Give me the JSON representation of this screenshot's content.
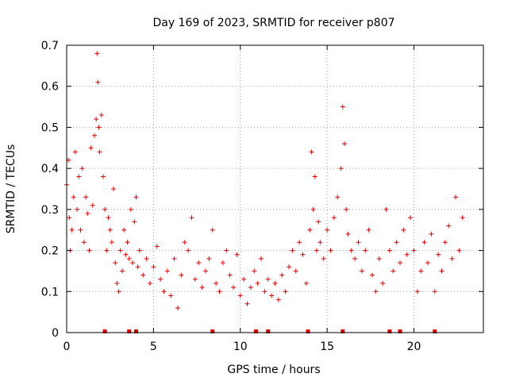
{
  "chart_data": {
    "type": "scatter",
    "title": "Day 169 of 2023, SRMTID for receiver p807",
    "xlabel": "GPS time / hours",
    "ylabel": "SRMTID / TECUs",
    "xlim": [
      0,
      24
    ],
    "ylim": [
      0,
      0.7
    ],
    "xticks": [
      0,
      5,
      10,
      15,
      20
    ],
    "xtick_labels": [
      "0",
      "5",
      "10",
      "15",
      "20"
    ],
    "yticks": [
      0,
      0.1,
      0.2,
      0.3,
      0.4,
      0.5,
      0.6,
      0.7
    ],
    "ytick_labels": [
      "0",
      "0.1",
      "0.2",
      "0.3",
      "0.4",
      "0.5",
      "0.6",
      "0.7"
    ],
    "grid": true,
    "marker": "+",
    "color": "#e00000",
    "series": [
      {
        "name": "SRMTID",
        "points": [
          [
            0.0,
            0.36
          ],
          [
            0.1,
            0.42
          ],
          [
            0.15,
            0.28
          ],
          [
            0.2,
            0.2
          ],
          [
            0.3,
            0.25
          ],
          [
            0.4,
            0.33
          ],
          [
            0.5,
            0.44
          ],
          [
            0.6,
            0.3
          ],
          [
            0.7,
            0.38
          ],
          [
            0.8,
            0.25
          ],
          [
            0.9,
            0.4
          ],
          [
            1.0,
            0.22
          ],
          [
            1.1,
            0.33
          ],
          [
            1.2,
            0.29
          ],
          [
            1.3,
            0.2
          ],
          [
            1.4,
            0.45
          ],
          [
            1.5,
            0.31
          ],
          [
            1.6,
            0.48
          ],
          [
            1.7,
            0.52
          ],
          [
            1.75,
            0.68
          ],
          [
            1.8,
            0.61
          ],
          [
            1.85,
            0.5
          ],
          [
            1.9,
            0.44
          ],
          [
            2.0,
            0.53
          ],
          [
            2.1,
            0.38
          ],
          [
            2.2,
            0.3
          ],
          [
            2.3,
            0.2
          ],
          [
            2.4,
            0.28
          ],
          [
            2.5,
            0.25
          ],
          [
            2.6,
            0.22
          ],
          [
            2.7,
            0.35
          ],
          [
            2.8,
            0.17
          ],
          [
            2.9,
            0.12
          ],
          [
            3.0,
            0.1
          ],
          [
            3.1,
            0.2
          ],
          [
            3.2,
            0.15
          ],
          [
            3.3,
            0.25
          ],
          [
            3.4,
            0.19
          ],
          [
            3.5,
            0.22
          ],
          [
            3.6,
            0.18
          ],
          [
            3.7,
            0.3
          ],
          [
            3.8,
            0.17
          ],
          [
            3.9,
            0.27
          ],
          [
            4.0,
            0.33
          ],
          [
            4.1,
            0.16
          ],
          [
            4.2,
            0.2
          ],
          [
            4.4,
            0.14
          ],
          [
            4.6,
            0.18
          ],
          [
            4.8,
            0.12
          ],
          [
            5.0,
            0.16
          ],
          [
            5.2,
            0.21
          ],
          [
            5.4,
            0.13
          ],
          [
            5.6,
            0.1
          ],
          [
            5.8,
            0.15
          ],
          [
            6.0,
            0.09
          ],
          [
            6.2,
            0.18
          ],
          [
            6.4,
            0.06
          ],
          [
            6.6,
            0.14
          ],
          [
            6.8,
            0.22
          ],
          [
            7.0,
            0.2
          ],
          [
            7.2,
            0.28
          ],
          [
            7.4,
            0.13
          ],
          [
            7.6,
            0.17
          ],
          [
            7.8,
            0.11
          ],
          [
            8.0,
            0.15
          ],
          [
            8.2,
            0.18
          ],
          [
            8.4,
            0.25
          ],
          [
            8.6,
            0.12
          ],
          [
            8.8,
            0.1
          ],
          [
            9.0,
            0.17
          ],
          [
            9.2,
            0.2
          ],
          [
            9.4,
            0.14
          ],
          [
            9.6,
            0.11
          ],
          [
            9.8,
            0.19
          ],
          [
            10.0,
            0.09
          ],
          [
            10.2,
            0.13
          ],
          [
            10.4,
            0.07
          ],
          [
            10.6,
            0.11
          ],
          [
            10.8,
            0.15
          ],
          [
            11.0,
            0.12
          ],
          [
            11.2,
            0.18
          ],
          [
            11.4,
            0.1
          ],
          [
            11.6,
            0.13
          ],
          [
            11.8,
            0.09
          ],
          [
            12.0,
            0.12
          ],
          [
            12.2,
            0.08
          ],
          [
            12.4,
            0.14
          ],
          [
            12.6,
            0.1
          ],
          [
            12.8,
            0.16
          ],
          [
            13.0,
            0.2
          ],
          [
            13.2,
            0.15
          ],
          [
            13.4,
            0.22
          ],
          [
            13.6,
            0.19
          ],
          [
            13.8,
            0.12
          ],
          [
            14.0,
            0.25
          ],
          [
            14.1,
            0.44
          ],
          [
            14.2,
            0.3
          ],
          [
            14.3,
            0.38
          ],
          [
            14.4,
            0.2
          ],
          [
            14.5,
            0.27
          ],
          [
            14.6,
            0.22
          ],
          [
            14.8,
            0.18
          ],
          [
            15.0,
            0.25
          ],
          [
            15.2,
            0.2
          ],
          [
            15.4,
            0.28
          ],
          [
            15.6,
            0.33
          ],
          [
            15.8,
            0.4
          ],
          [
            15.9,
            0.55
          ],
          [
            16.0,
            0.46
          ],
          [
            16.1,
            0.3
          ],
          [
            16.2,
            0.24
          ],
          [
            16.4,
            0.2
          ],
          [
            16.6,
            0.18
          ],
          [
            16.8,
            0.22
          ],
          [
            17.0,
            0.15
          ],
          [
            17.2,
            0.2
          ],
          [
            17.4,
            0.25
          ],
          [
            17.6,
            0.14
          ],
          [
            17.8,
            0.1
          ],
          [
            18.0,
            0.18
          ],
          [
            18.2,
            0.12
          ],
          [
            18.4,
            0.3
          ],
          [
            18.6,
            0.2
          ],
          [
            18.8,
            0.15
          ],
          [
            19.0,
            0.22
          ],
          [
            19.2,
            0.17
          ],
          [
            19.4,
            0.25
          ],
          [
            19.6,
            0.19
          ],
          [
            19.8,
            0.28
          ],
          [
            20.0,
            0.2
          ],
          [
            20.2,
            0.1
          ],
          [
            20.4,
            0.15
          ],
          [
            20.6,
            0.22
          ],
          [
            20.8,
            0.17
          ],
          [
            21.0,
            0.24
          ],
          [
            21.2,
            0.1
          ],
          [
            21.4,
            0.19
          ],
          [
            21.6,
            0.15
          ],
          [
            21.8,
            0.22
          ],
          [
            22.0,
            0.26
          ],
          [
            22.2,
            0.18
          ],
          [
            22.4,
            0.33
          ],
          [
            22.6,
            0.2
          ],
          [
            22.8,
            0.28
          ]
        ]
      }
    ],
    "data_gaps_x": [
      2.2,
      3.6,
      4.0,
      8.4,
      10.9,
      11.6,
      13.9,
      15.9,
      18.6,
      19.2,
      21.2
    ]
  }
}
